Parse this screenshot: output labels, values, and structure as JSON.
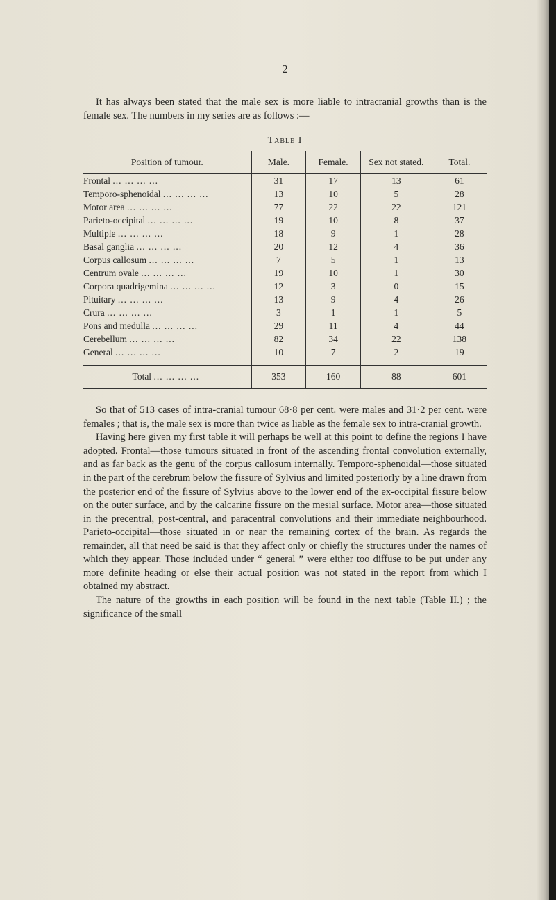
{
  "page_number": "2",
  "intro": "It has always been stated that the male sex is more liable to intracranial growths than is the female sex. The numbers in my series are as follows :—",
  "table_label": "Table I",
  "table": {
    "columns": [
      "Position of tumour.",
      "Male.",
      "Female.",
      "Sex not stated.",
      "Total."
    ],
    "rows": [
      [
        "Frontal",
        "31",
        "17",
        "13",
        "61"
      ],
      [
        "Temporo-sphenoidal",
        "13",
        "10",
        "5",
        "28"
      ],
      [
        "Motor area",
        "77",
        "22",
        "22",
        "121"
      ],
      [
        "Parieto-occipital",
        "19",
        "10",
        "8",
        "37"
      ],
      [
        "Multiple",
        "18",
        "9",
        "1",
        "28"
      ],
      [
        "Basal ganglia",
        "20",
        "12",
        "4",
        "36"
      ],
      [
        "Corpus callosum",
        "7",
        "5",
        "1",
        "13"
      ],
      [
        "Centrum ovale",
        "19",
        "10",
        "1",
        "30"
      ],
      [
        "Corpora quadrigemina",
        "12",
        "3",
        "0",
        "15"
      ],
      [
        "Pituitary",
        "13",
        "9",
        "4",
        "26"
      ],
      [
        "Crura",
        "3",
        "1",
        "1",
        "5"
      ],
      [
        "Pons and medulla",
        "29",
        "11",
        "4",
        "44"
      ],
      [
        "Cerebellum",
        "82",
        "34",
        "22",
        "138"
      ],
      [
        "General",
        "10",
        "7",
        "2",
        "19"
      ]
    ],
    "total_row": [
      "Total",
      "353",
      "160",
      "88",
      "601"
    ],
    "dot_leader": "... ... ... ... ... ...",
    "dot_leader_short": "... ... ...",
    "col_widths": [
      "40%",
      "13%",
      "13%",
      "17%",
      "13%"
    ]
  },
  "body_paragraphs": [
    "So that of 513 cases of intra-cranial tumour 68·8 per cent. were males and 31·2 per cent. were females ; that is, the male sex is more than twice as liable as the female sex to intra-cranial growth.",
    "Having here given my first table it will perhaps be well at this point to define the regions I have adopted. Frontal—those tumours situated in front of the ascending frontal convolution externally, and as far back as the genu of the corpus callosum internally. Temporo-sphenoidal—those situated in the part of the cerebrum below the fissure of Sylvius and limited posteriorly by a line drawn from the posterior end of the fissure of Sylvius above to the lower end of the ex-occipital fissure below on the outer surface, and by the calcarine fissure on the mesial surface. Motor area—those situated in the precentral, post-central, and paracentral convolutions and their immediate neighbourhood. Parieto-occipital—those situated in or near the remaining cortex of the brain. As regards the remainder, all that need be said is that they affect only or chiefly the structures under the names of which they appear. Those included under “ general ” were either too diffuse to be put under any more definite heading or else their actual position was not stated in the report from which I obtained my abstract.",
    "The nature of the growths in each position will be found in the next table (Table II.) ; the significance of the small"
  ],
  "colors": {
    "page_bg": "#e8e4d8",
    "text": "#2a2a28",
    "rule": "#333333"
  },
  "typography": {
    "body_fontsize_pt": 11,
    "table_fontsize_pt": 10,
    "font_family": "Georgia serif"
  }
}
